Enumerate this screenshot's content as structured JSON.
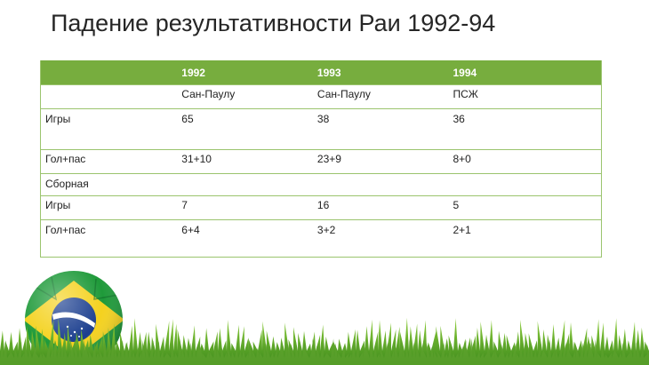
{
  "title": "Падение результативности Раи 1992-94",
  "table": {
    "header": [
      "",
      "1992",
      "1993",
      "1994"
    ],
    "rows": [
      [
        "",
        "Сан-Паулу",
        "Сан-Паулу",
        "ПСЖ"
      ],
      [
        "Игры",
        "65",
        "38",
        "36"
      ],
      [
        "Гол+пас",
        "31+10",
        "23+9",
        "8+0"
      ],
      [
        "Сборная",
        "",
        "",
        ""
      ],
      [
        "Игры",
        "7",
        "16",
        "5"
      ],
      [
        "Гол+пас",
        "6+4",
        "3+2",
        "2+1"
      ]
    ]
  },
  "colors": {
    "header_green": "#77ad3e",
    "border_green": "#9bc46e",
    "grass_green": "#5aa02c"
  },
  "decor": {
    "ball_icon": "brazil-flag-ball-icon",
    "grass_icon": "grass-strip-icon"
  }
}
